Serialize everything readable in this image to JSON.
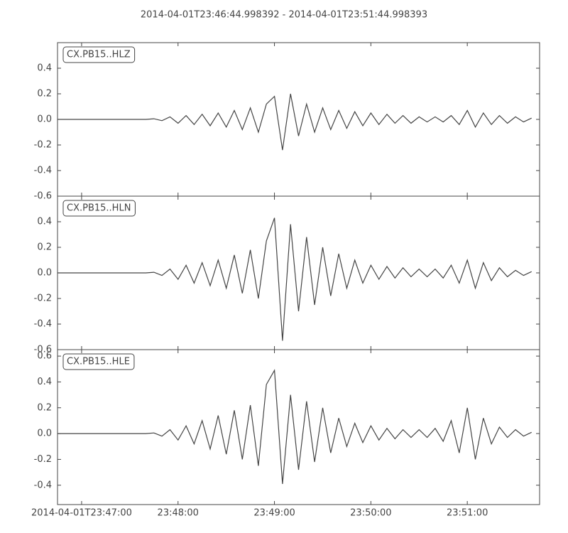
{
  "chart_data": [
    {
      "type": "line",
      "title": "2014-04-01T23:46:44.998392  -  2014-04-01T23:51:44.998393",
      "x": [
        "2014-04-01T23:46:45",
        "2014-04-01T23:46:50",
        "2014-04-01T23:46:55",
        "2014-04-01T23:47:00",
        "2014-04-01T23:47:05",
        "2014-04-01T23:47:10",
        "2014-04-01T23:47:15",
        "2014-04-01T23:47:20",
        "2014-04-01T23:47:25",
        "2014-04-01T23:47:30",
        "2014-04-01T23:47:35",
        "2014-04-01T23:47:40",
        "2014-04-01T23:47:45",
        "2014-04-01T23:47:50",
        "2014-04-01T23:47:55",
        "2014-04-01T23:48:00",
        "2014-04-01T23:48:05",
        "2014-04-01T23:48:10",
        "2014-04-01T23:48:15",
        "2014-04-01T23:48:20",
        "2014-04-01T23:48:25",
        "2014-04-01T23:48:30",
        "2014-04-01T23:48:35",
        "2014-04-01T23:48:40",
        "2014-04-01T23:48:45",
        "2014-04-01T23:48:50",
        "2014-04-01T23:48:55",
        "2014-04-01T23:49:00",
        "2014-04-01T23:49:05",
        "2014-04-01T23:49:10",
        "2014-04-01T23:49:15",
        "2014-04-01T23:49:20",
        "2014-04-01T23:49:25",
        "2014-04-01T23:49:30",
        "2014-04-01T23:49:35",
        "2014-04-01T23:49:40",
        "2014-04-01T23:49:45",
        "2014-04-01T23:49:50",
        "2014-04-01T23:49:55",
        "2014-04-01T23:50:00",
        "2014-04-01T23:50:05",
        "2014-04-01T23:50:10",
        "2014-04-01T23:50:15",
        "2014-04-01T23:50:20",
        "2014-04-01T23:50:25",
        "2014-04-01T23:50:30",
        "2014-04-01T23:50:35",
        "2014-04-01T23:50:40",
        "2014-04-01T23:50:45",
        "2014-04-01T23:50:50",
        "2014-04-01T23:50:55",
        "2014-04-01T23:51:00",
        "2014-04-01T23:51:05",
        "2014-04-01T23:51:10",
        "2014-04-01T23:51:15",
        "2014-04-01T23:51:20",
        "2014-04-01T23:51:25",
        "2014-04-01T23:51:30",
        "2014-04-01T23:51:35",
        "2014-04-01T23:51:40"
      ],
      "series": [
        {
          "name": "CX.PB15..HLZ",
          "color": "#444444",
          "values": [
            0,
            0,
            0,
            0,
            0,
            0,
            0,
            0,
            0,
            0,
            0,
            0,
            0.005,
            -0.01,
            0.02,
            -0.03,
            0.03,
            -0.04,
            0.04,
            -0.05,
            0.05,
            -0.06,
            0.07,
            -0.08,
            0.09,
            -0.1,
            0.12,
            0.18,
            -0.24,
            0.2,
            -0.13,
            0.12,
            -0.1,
            0.09,
            -0.08,
            0.07,
            -0.07,
            0.06,
            -0.05,
            0.05,
            -0.04,
            0.04,
            -0.03,
            0.03,
            -0.03,
            0.02,
            -0.02,
            0.02,
            -0.02,
            0.03,
            -0.04,
            0.07,
            -0.06,
            0.05,
            -0.04,
            0.03,
            -0.03,
            0.02,
            -0.02,
            0.01
          ]
        }
      ],
      "xlim": [
        "2014-04-01T23:46:44.998392",
        "2014-04-01T23:51:44.998393"
      ],
      "ylim": [
        -0.6,
        0.6
      ],
      "yticks": [
        -0.6,
        -0.4,
        -0.2,
        {
          "value": 0,
          "label": "0.0"
        },
        0.2,
        0.4
      ]
    },
    {
      "type": "line",
      "x": [
        "2014-04-01T23:46:45",
        "2014-04-01T23:46:50",
        "2014-04-01T23:46:55",
        "2014-04-01T23:47:00",
        "2014-04-01T23:47:05",
        "2014-04-01T23:47:10",
        "2014-04-01T23:47:15",
        "2014-04-01T23:47:20",
        "2014-04-01T23:47:25",
        "2014-04-01T23:47:30",
        "2014-04-01T23:47:35",
        "2014-04-01T23:47:40",
        "2014-04-01T23:47:45",
        "2014-04-01T23:47:50",
        "2014-04-01T23:47:55",
        "2014-04-01T23:48:00",
        "2014-04-01T23:48:05",
        "2014-04-01T23:48:10",
        "2014-04-01T23:48:15",
        "2014-04-01T23:48:20",
        "2014-04-01T23:48:25",
        "2014-04-01T23:48:30",
        "2014-04-01T23:48:35",
        "2014-04-01T23:48:40",
        "2014-04-01T23:48:45",
        "2014-04-01T23:48:50",
        "2014-04-01T23:48:55",
        "2014-04-01T23:49:00",
        "2014-04-01T23:49:05",
        "2014-04-01T23:49:10",
        "2014-04-01T23:49:15",
        "2014-04-01T23:49:20",
        "2014-04-01T23:49:25",
        "2014-04-01T23:49:30",
        "2014-04-01T23:49:35",
        "2014-04-01T23:49:40",
        "2014-04-01T23:49:45",
        "2014-04-01T23:49:50",
        "2014-04-01T23:49:55",
        "2014-04-01T23:50:00",
        "2014-04-01T23:50:05",
        "2014-04-01T23:50:10",
        "2014-04-01T23:50:15",
        "2014-04-01T23:50:20",
        "2014-04-01T23:50:25",
        "2014-04-01T23:50:30",
        "2014-04-01T23:50:35",
        "2014-04-01T23:50:40",
        "2014-04-01T23:50:45",
        "2014-04-01T23:50:50",
        "2014-04-01T23:50:55",
        "2014-04-01T23:51:00",
        "2014-04-01T23:51:05",
        "2014-04-01T23:51:10",
        "2014-04-01T23:51:15",
        "2014-04-01T23:51:20",
        "2014-04-01T23:51:25",
        "2014-04-01T23:51:30",
        "2014-04-01T23:51:35",
        "2014-04-01T23:51:40"
      ],
      "series": [
        {
          "name": "CX.PB15..HLN",
          "color": "#444444",
          "values": [
            0,
            0,
            0,
            0,
            0,
            0,
            0,
            0,
            0,
            0,
            0,
            0,
            0.005,
            -0.02,
            0.03,
            -0.05,
            0.06,
            -0.08,
            0.08,
            -0.1,
            0.1,
            -0.12,
            0.14,
            -0.16,
            0.18,
            -0.2,
            0.25,
            0.43,
            -0.53,
            0.38,
            -0.3,
            0.28,
            -0.25,
            0.2,
            -0.18,
            0.15,
            -0.12,
            0.1,
            -0.08,
            0.06,
            -0.05,
            0.05,
            -0.04,
            0.04,
            -0.03,
            0.03,
            -0.03,
            0.03,
            -0.04,
            0.06,
            -0.08,
            0.1,
            -0.12,
            0.08,
            -0.06,
            0.04,
            -0.03,
            0.02,
            -0.02,
            0.01
          ]
        }
      ],
      "xlim": [
        "2014-04-01T23:46:44.998392",
        "2014-04-01T23:51:44.998393"
      ],
      "ylim": [
        -0.6,
        0.6
      ],
      "yticks": [
        -0.6,
        -0.4,
        -0.2,
        {
          "value": 0,
          "label": "0.0"
        },
        0.2,
        0.4
      ]
    },
    {
      "type": "line",
      "x": [
        "2014-04-01T23:46:45",
        "2014-04-01T23:46:50",
        "2014-04-01T23:46:55",
        "2014-04-01T23:47:00",
        "2014-04-01T23:47:05",
        "2014-04-01T23:47:10",
        "2014-04-01T23:47:15",
        "2014-04-01T23:47:20",
        "2014-04-01T23:47:25",
        "2014-04-01T23:47:30",
        "2014-04-01T23:47:35",
        "2014-04-01T23:47:40",
        "2014-04-01T23:47:45",
        "2014-04-01T23:47:50",
        "2014-04-01T23:47:55",
        "2014-04-01T23:48:00",
        "2014-04-01T23:48:05",
        "2014-04-01T23:48:10",
        "2014-04-01T23:48:15",
        "2014-04-01T23:48:20",
        "2014-04-01T23:48:25",
        "2014-04-01T23:48:30",
        "2014-04-01T23:48:35",
        "2014-04-01T23:48:40",
        "2014-04-01T23:48:45",
        "2014-04-01T23:48:50",
        "2014-04-01T23:48:55",
        "2014-04-01T23:49:00",
        "2014-04-01T23:49:05",
        "2014-04-01T23:49:10",
        "2014-04-01T23:49:15",
        "2014-04-01T23:49:20",
        "2014-04-01T23:49:25",
        "2014-04-01T23:49:30",
        "2014-04-01T23:49:35",
        "2014-04-01T23:49:40",
        "2014-04-01T23:49:45",
        "2014-04-01T23:49:50",
        "2014-04-01T23:49:55",
        "2014-04-01T23:50:00",
        "2014-04-01T23:50:05",
        "2014-04-01T23:50:10",
        "2014-04-01T23:50:15",
        "2014-04-01T23:50:20",
        "2014-04-01T23:50:25",
        "2014-04-01T23:50:30",
        "2014-04-01T23:50:35",
        "2014-04-01T23:50:40",
        "2014-04-01T23:50:45",
        "2014-04-01T23:50:50",
        "2014-04-01T23:50:55",
        "2014-04-01T23:51:00",
        "2014-04-01T23:51:05",
        "2014-04-01T23:51:10",
        "2014-04-01T23:51:15",
        "2014-04-01T23:51:20",
        "2014-04-01T23:51:25",
        "2014-04-01T23:51:30",
        "2014-04-01T23:51:35",
        "2014-04-01T23:51:40"
      ],
      "series": [
        {
          "name": "CX.PB15..HLE",
          "color": "#444444",
          "values": [
            0,
            0,
            0,
            0,
            0,
            0,
            0,
            0,
            0,
            0,
            0,
            0,
            0.005,
            -0.02,
            0.03,
            -0.05,
            0.06,
            -0.08,
            0.1,
            -0.12,
            0.14,
            -0.16,
            0.18,
            -0.2,
            0.22,
            -0.25,
            0.38,
            0.49,
            -0.39,
            0.3,
            -0.28,
            0.25,
            -0.22,
            0.2,
            -0.15,
            0.12,
            -0.1,
            0.08,
            -0.07,
            0.06,
            -0.05,
            0.04,
            -0.04,
            0.03,
            -0.03,
            0.03,
            -0.03,
            0.04,
            -0.06,
            0.1,
            -0.15,
            0.2,
            -0.2,
            0.12,
            -0.08,
            0.05,
            -0.03,
            0.03,
            -0.02,
            0.01
          ]
        }
      ],
      "xlim": [
        "2014-04-01T23:46:44.998392",
        "2014-04-01T23:51:44.998393"
      ],
      "ylim": [
        -0.55,
        0.65
      ],
      "yticks": [
        -0.4,
        -0.2,
        {
          "value": 0,
          "label": "0.0"
        },
        0.2,
        0.4,
        0.6
      ],
      "xticks": [
        "2014-04-01T23:47:00",
        {
          "value": "2014-04-01T23:48:00",
          "label": "23:48:00"
        },
        {
          "value": "2014-04-01T23:49:00",
          "label": "23:49:00"
        },
        {
          "value": "2014-04-01T23:50:00",
          "label": "23:50:00"
        },
        {
          "value": "2014-04-01T23:51:00",
          "label": "23:51:00"
        }
      ]
    }
  ]
}
